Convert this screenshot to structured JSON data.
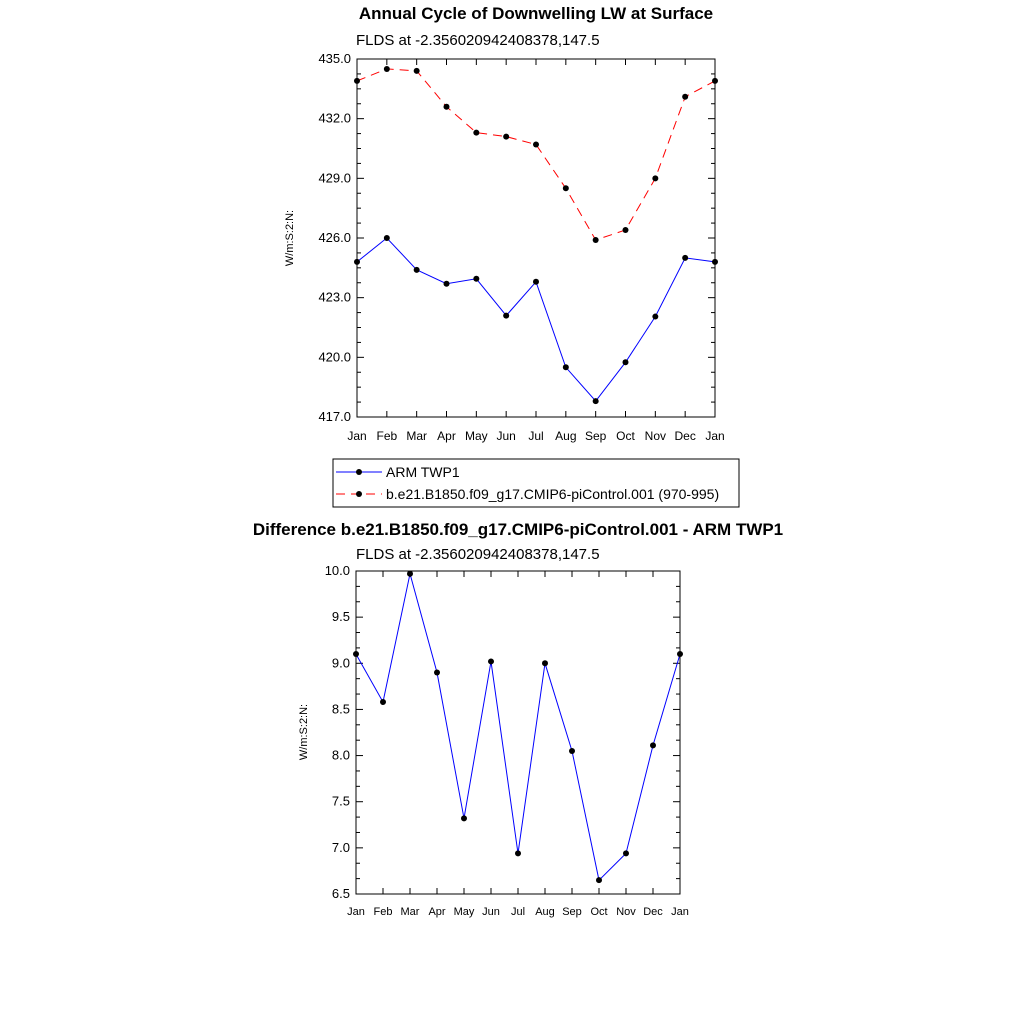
{
  "chart_data": [
    {
      "type": "line",
      "title": "Annual Cycle of Downwelling LW at Surface",
      "subtitle": "FLDS at -2.356020942408378,147.5",
      "ylabel": "W/m:S:2:N:",
      "xlabel": "",
      "categories": [
        "Jan",
        "Feb",
        "Mar",
        "Apr",
        "May",
        "Jun",
        "Jul",
        "Aug",
        "Sep",
        "Oct",
        "Nov",
        "Dec",
        "Jan"
      ],
      "ylim": [
        417.0,
        435.0
      ],
      "yticks": [
        417.0,
        420.0,
        423.0,
        426.0,
        429.0,
        432.0,
        435.0
      ],
      "ytick_labels": [
        "417.0",
        "420.0",
        "423.0",
        "426.0",
        "429.0",
        "432.0",
        "435.0"
      ],
      "grid": false,
      "legend_placement": "bottom",
      "series": [
        {
          "name": "ARM TWP1",
          "color": "#0000ff",
          "dash": "solid",
          "values": [
            424.8,
            426.0,
            424.4,
            423.7,
            423.95,
            422.1,
            423.8,
            419.5,
            417.8,
            419.75,
            422.05,
            425.0,
            424.8
          ]
        },
        {
          "name": "b.e21.B1850.f09_g17.CMIP6-piControl.001 (970-995)",
          "color": "#ff0000",
          "dash": "dashed",
          "values": [
            433.9,
            434.5,
            434.4,
            432.6,
            431.3,
            431.1,
            430.7,
            428.5,
            425.9,
            426.4,
            429.0,
            433.1,
            433.9
          ]
        }
      ]
    },
    {
      "type": "line",
      "title": "Difference b.e21.B1850.f09_g17.CMIP6-piControl.001 - ARM TWP1",
      "subtitle": "FLDS at -2.356020942408378,147.5",
      "ylabel": "W/m:S:2:N:",
      "xlabel": "",
      "categories": [
        "Jan",
        "Feb",
        "Mar",
        "Apr",
        "May",
        "Jun",
        "Jul",
        "Aug",
        "Sep",
        "Oct",
        "Nov",
        "Dec",
        "Jan"
      ],
      "ylim": [
        6.5,
        10.0
      ],
      "yticks": [
        6.5,
        7.0,
        7.5,
        8.0,
        8.5,
        9.0,
        9.5,
        10.0
      ],
      "ytick_labels": [
        "6.5",
        "7.0",
        "7.5",
        "8.0",
        "8.5",
        "9.0",
        "9.5",
        "10.0"
      ],
      "grid": false,
      "series": [
        {
          "color": "#0000ff",
          "dash": "solid",
          "values": [
            9.1,
            8.58,
            9.97,
            8.9,
            7.32,
            9.02,
            6.94,
            9.0,
            8.05,
            6.65,
            6.94,
            8.11,
            9.1
          ]
        }
      ]
    }
  ]
}
